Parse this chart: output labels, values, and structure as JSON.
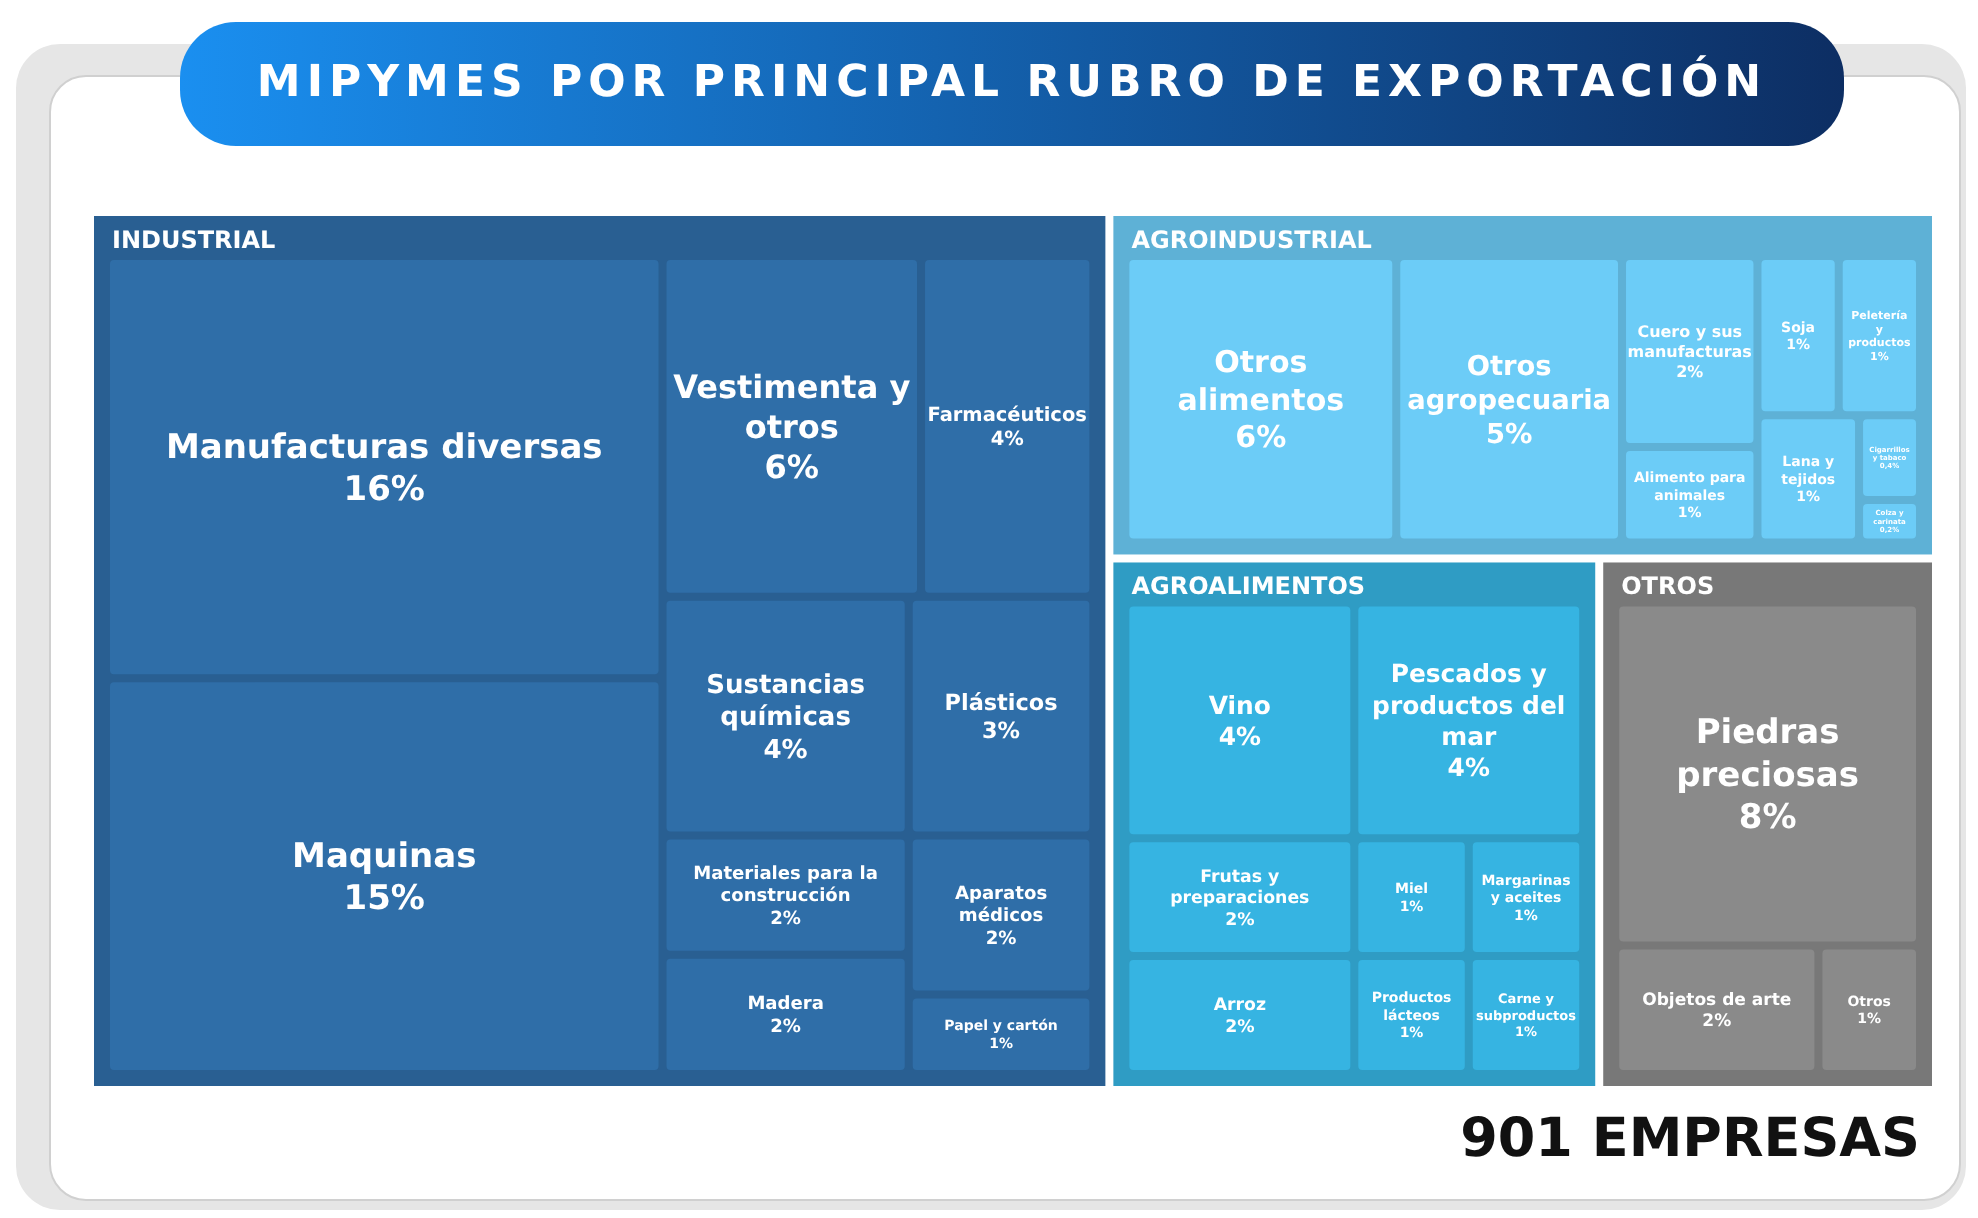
{
  "chart_data": {
    "type": "other",
    "title": "MIPYMES POR PRINCIPAL RUBRO DE EXPORTACIÓN",
    "annotations": [
      "901 EMPRESAS"
    ],
    "categories": [
      "Manufacturas diversas",
      "Maquinas",
      "Vestimenta y otros",
      "Farmacéuticos",
      "Sustancias químicas",
      "Plásticos",
      "Materiales para la construcción",
      "Madera",
      "Aparatos médicos",
      "Papel y cartón",
      "Otros alimentos",
      "Otros agropecuaria",
      "Cuero y sus manufacturas",
      "Alimento para animales",
      "Soja",
      "Peletería y productos",
      "Lana y tejidos",
      "Cigarrillos y tabaco",
      "Colza y carinata",
      "Vino",
      "Pescados y productos del mar",
      "Frutas y preparaciones",
      "Arroz",
      "Miel",
      "Margarinas y aceites",
      "Productos lácteos",
      "Carne y subproductos",
      "Piedras preciosas",
      "Objetos de arte",
      "Otros"
    ],
    "series": [
      {
        "name": "INDUSTRIAL",
        "color": "#2f6ea8",
        "values": [
          16,
          15,
          6,
          4,
          4,
          3,
          2,
          2,
          2,
          1,
          null,
          null,
          null,
          null,
          null,
          null,
          null,
          null,
          null,
          null,
          null,
          null,
          null,
          null,
          null,
          null,
          null,
          null,
          null,
          null
        ],
        "value_labels": [
          "16%",
          "15%",
          "6%",
          "4%",
          "4%",
          "3%",
          "2%",
          "2%",
          "2%",
          "1%",
          null,
          null,
          null,
          null,
          null,
          null,
          null,
          null,
          null,
          null,
          null,
          null,
          null,
          null,
          null,
          null,
          null,
          null,
          null,
          null
        ]
      },
      {
        "name": "AGROINDUSTRIAL",
        "color": "#6cccf7",
        "values": [
          null,
          null,
          null,
          null,
          null,
          null,
          null,
          null,
          null,
          null,
          6,
          5,
          2,
          1,
          1,
          1,
          1,
          0.4,
          0.2,
          null,
          null,
          null,
          null,
          null,
          null,
          null,
          null,
          null,
          null,
          null
        ],
        "value_labels": [
          null,
          null,
          null,
          null,
          null,
          null,
          null,
          null,
          null,
          null,
          "6%",
          "5%",
          "2%",
          "1%",
          "1%",
          "1%",
          "1%",
          "0,4%",
          "0,2%",
          null,
          null,
          null,
          null,
          null,
          null,
          null,
          null,
          null,
          null,
          null
        ]
      },
      {
        "name": "AGROALIMENTOS",
        "color": "#36b4e2",
        "values": [
          null,
          null,
          null,
          null,
          null,
          null,
          null,
          null,
          null,
          null,
          null,
          null,
          null,
          null,
          null,
          null,
          null,
          null,
          null,
          4,
          4,
          2,
          2,
          1,
          1,
          1,
          1,
          null,
          null,
          null
        ],
        "value_labels": [
          null,
          null,
          null,
          null,
          null,
          null,
          null,
          null,
          null,
          null,
          null,
          null,
          null,
          null,
          null,
          null,
          null,
          null,
          null,
          "4%",
          "4%",
          "2%",
          "2%",
          "1%",
          "1%",
          "1%",
          "1%",
          null,
          null,
          null
        ]
      },
      {
        "name": "OTROS",
        "color": "#8a8a8a",
        "values": [
          null,
          null,
          null,
          null,
          null,
          null,
          null,
          null,
          null,
          null,
          null,
          null,
          null,
          null,
          null,
          null,
          null,
          null,
          null,
          null,
          null,
          null,
          null,
          null,
          null,
          null,
          null,
          8,
          2,
          1
        ],
        "value_labels": [
          null,
          null,
          null,
          null,
          null,
          null,
          null,
          null,
          null,
          null,
          null,
          null,
          null,
          null,
          null,
          null,
          null,
          null,
          null,
          null,
          null,
          null,
          null,
          null,
          null,
          null,
          null,
          "8%",
          "2%",
          "1%"
        ]
      }
    ]
  }
}
